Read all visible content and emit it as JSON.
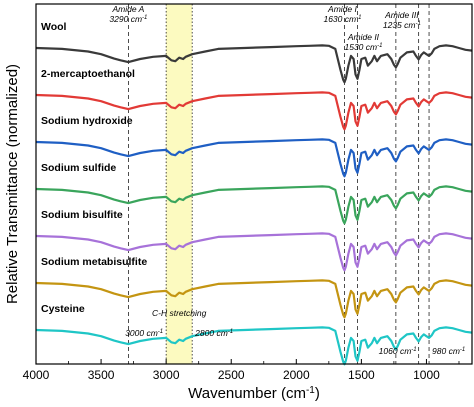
{
  "chart_data": {
    "type": "line",
    "xlabel": "Wavenumber (cm",
    "xlabel_sup": "-1",
    "xlabel_tail": ")",
    "ylabel": "Relative Transmittance (normalized)",
    "xlim": [
      4000,
      650
    ],
    "x_reversed": true,
    "x_ticks": [
      4000,
      3500,
      3000,
      2500,
      2000,
      1500,
      1000
    ],
    "y_ticks": "none",
    "grid": false,
    "legend": "labels above each curve",
    "highlight_band": {
      "from": 3000,
      "to": 2800,
      "color": "#fcfac0",
      "label": "C-H stretching"
    },
    "reference_lines": [
      {
        "x": 3290,
        "label_line1": "Amide A",
        "label_line2": "3290 cm",
        "sup": "-1",
        "style": "dashed"
      },
      {
        "x": 3000,
        "label_line1": "3000 cm",
        "sup": "-1",
        "style": "dotted"
      },
      {
        "x": 2800,
        "label_line1": "2800 cm",
        "sup": "-1",
        "style": "dotted"
      },
      {
        "x": 1630,
        "label_line1": "Amide I",
        "label_line2": "1630 cm",
        "sup": "-1",
        "style": "dashed"
      },
      {
        "x": 1530,
        "label_line1": "Amide II",
        "label_line2": "1530 cm",
        "sup": "-1",
        "style": "dashed"
      },
      {
        "x": 1235,
        "label_line1": "Amide III",
        "label_line2": "1235 cm",
        "sup": "-1",
        "style": "dashed"
      },
      {
        "x": 1060,
        "label_line1": "1060 cm",
        "sup": "-1",
        "style": "dashed"
      },
      {
        "x": 980,
        "label_line1": "980 cm",
        "sup": "-1",
        "style": "dashed"
      }
    ],
    "series": [
      {
        "name": "Wool",
        "color": "#3a3a3a",
        "offset": 6
      },
      {
        "name": "2-mercaptoethanol",
        "color": "#e23a36",
        "offset": 5
      },
      {
        "name": "Sodium hydroxide",
        "color": "#1f5fc4",
        "offset": 4
      },
      {
        "name": "Sodium sulfide",
        "color": "#3aa55c",
        "offset": 3
      },
      {
        "name": "Sodium bisulfite",
        "color": "#a772d9",
        "offset": 2
      },
      {
        "name": "Sodium metabisulfite",
        "color": "#c49512",
        "offset": 1
      },
      {
        "name": "Cysteine",
        "color": "#1fc6c6",
        "offset": 0
      }
    ],
    "spectrum_profile": {
      "x": [
        4000,
        3800,
        3600,
        3500,
        3400,
        3350,
        3290,
        3200,
        3100,
        3000,
        2960,
        2930,
        2900,
        2870,
        2850,
        2800,
        2700,
        2600,
        2400,
        2200,
        2000,
        1900,
        1800,
        1750,
        1700,
        1660,
        1640,
        1630,
        1620,
        1600,
        1580,
        1560,
        1545,
        1530,
        1515,
        1500,
        1470,
        1450,
        1420,
        1400,
        1380,
        1350,
        1300,
        1270,
        1250,
        1235,
        1220,
        1200,
        1150,
        1100,
        1080,
        1060,
        1040,
        1020,
        1000,
        980,
        960,
        940,
        900,
        850,
        800,
        750,
        700,
        650
      ],
      "y": [
        0.8,
        0.78,
        0.72,
        0.66,
        0.56,
        0.52,
        0.48,
        0.55,
        0.6,
        0.62,
        0.52,
        0.5,
        0.58,
        0.55,
        0.6,
        0.66,
        0.72,
        0.78,
        0.8,
        0.82,
        0.84,
        0.85,
        0.86,
        0.85,
        0.78,
        0.3,
        0.08,
        0.02,
        0.1,
        0.4,
        0.62,
        0.55,
        0.2,
        0.1,
        0.3,
        0.55,
        0.58,
        0.4,
        0.5,
        0.62,
        0.5,
        0.62,
        0.66,
        0.55,
        0.42,
        0.36,
        0.44,
        0.58,
        0.7,
        0.72,
        0.62,
        0.54,
        0.64,
        0.7,
        0.66,
        0.62,
        0.68,
        0.78,
        0.84,
        0.86,
        0.84,
        0.8,
        0.76,
        0.74
      ]
    }
  }
}
